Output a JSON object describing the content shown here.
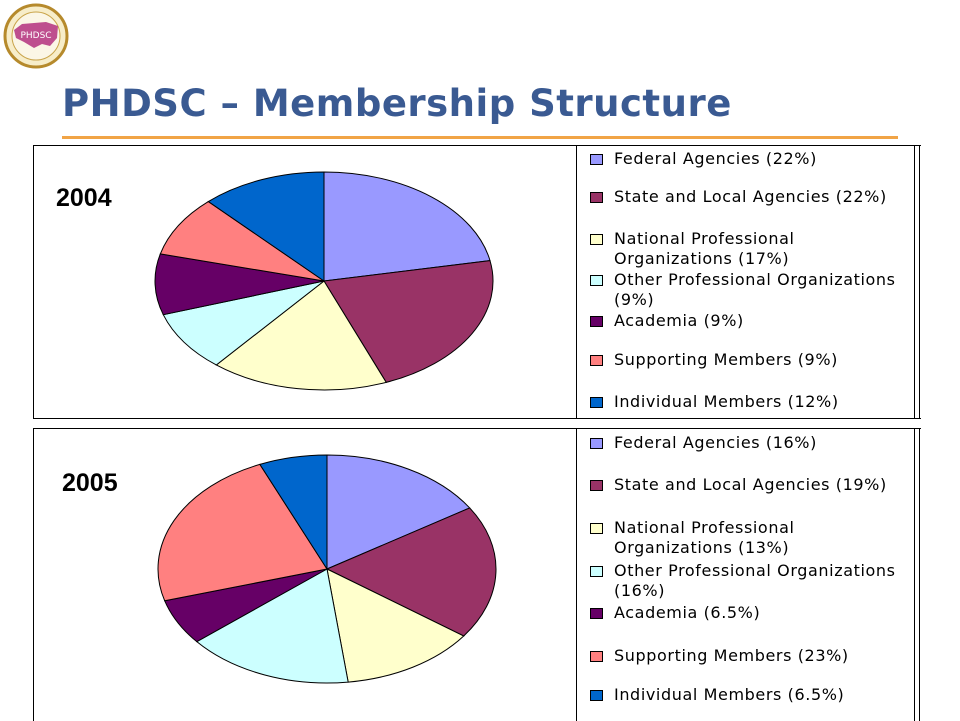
{
  "slide": {
    "title": "PHDSC – Membership Structure",
    "logo_text": "PHDSC"
  },
  "colors": {
    "title": "#3a5a92",
    "rule": "#f1a446"
  },
  "chart_data": [
    {
      "type": "pie",
      "title": "2004",
      "categories": [
        "Federal Agencies",
        "State and Local Agencies",
        "National Professional Organizations",
        "Other Professional Organizations",
        "Academia",
        "Supporting Members",
        "Individual Members"
      ],
      "values": [
        22,
        22,
        17,
        9,
        9,
        9,
        12
      ],
      "colors": [
        "#9999ff",
        "#993366",
        "#ffffcc",
        "#ccffff",
        "#660066",
        "#ff8080",
        "#0066cc"
      ],
      "legend": [
        {
          "label": "Federal Agencies (22%)"
        },
        {
          "label": "State and Local Agencies (22%)"
        },
        {
          "label": "National Professional Organizations (17%)"
        },
        {
          "label": "Other Professional Organizations (9%)"
        },
        {
          "label": "Academia (9%)"
        },
        {
          "label": "Supporting Members (9%)"
        },
        {
          "label": "Individual Members (12%)"
        }
      ],
      "legend_position": "right"
    },
    {
      "type": "pie",
      "title": "2005",
      "categories": [
        "Federal Agencies",
        "State and Local Agencies",
        "National Professional Organizations",
        "Other Professional Organizations",
        "Academia",
        "Supporting Members",
        "Individual Members"
      ],
      "values": [
        16,
        19,
        13,
        16,
        6.5,
        23,
        6.5
      ],
      "colors": [
        "#9999ff",
        "#993366",
        "#ffffcc",
        "#ccffff",
        "#660066",
        "#ff8080",
        "#0066cc"
      ],
      "legend": [
        {
          "label": "Federal Agencies (16%)"
        },
        {
          "label": "State and Local Agencies (19%)"
        },
        {
          "label": "National Professional Organizations (13%)"
        },
        {
          "label": "Other Professional Organizations (16%)"
        },
        {
          "label": "Academia (6.5%)"
        },
        {
          "label": "Supporting Members (23%)"
        },
        {
          "label": "Individual Members (6.5%)"
        }
      ],
      "legend_position": "right"
    }
  ]
}
